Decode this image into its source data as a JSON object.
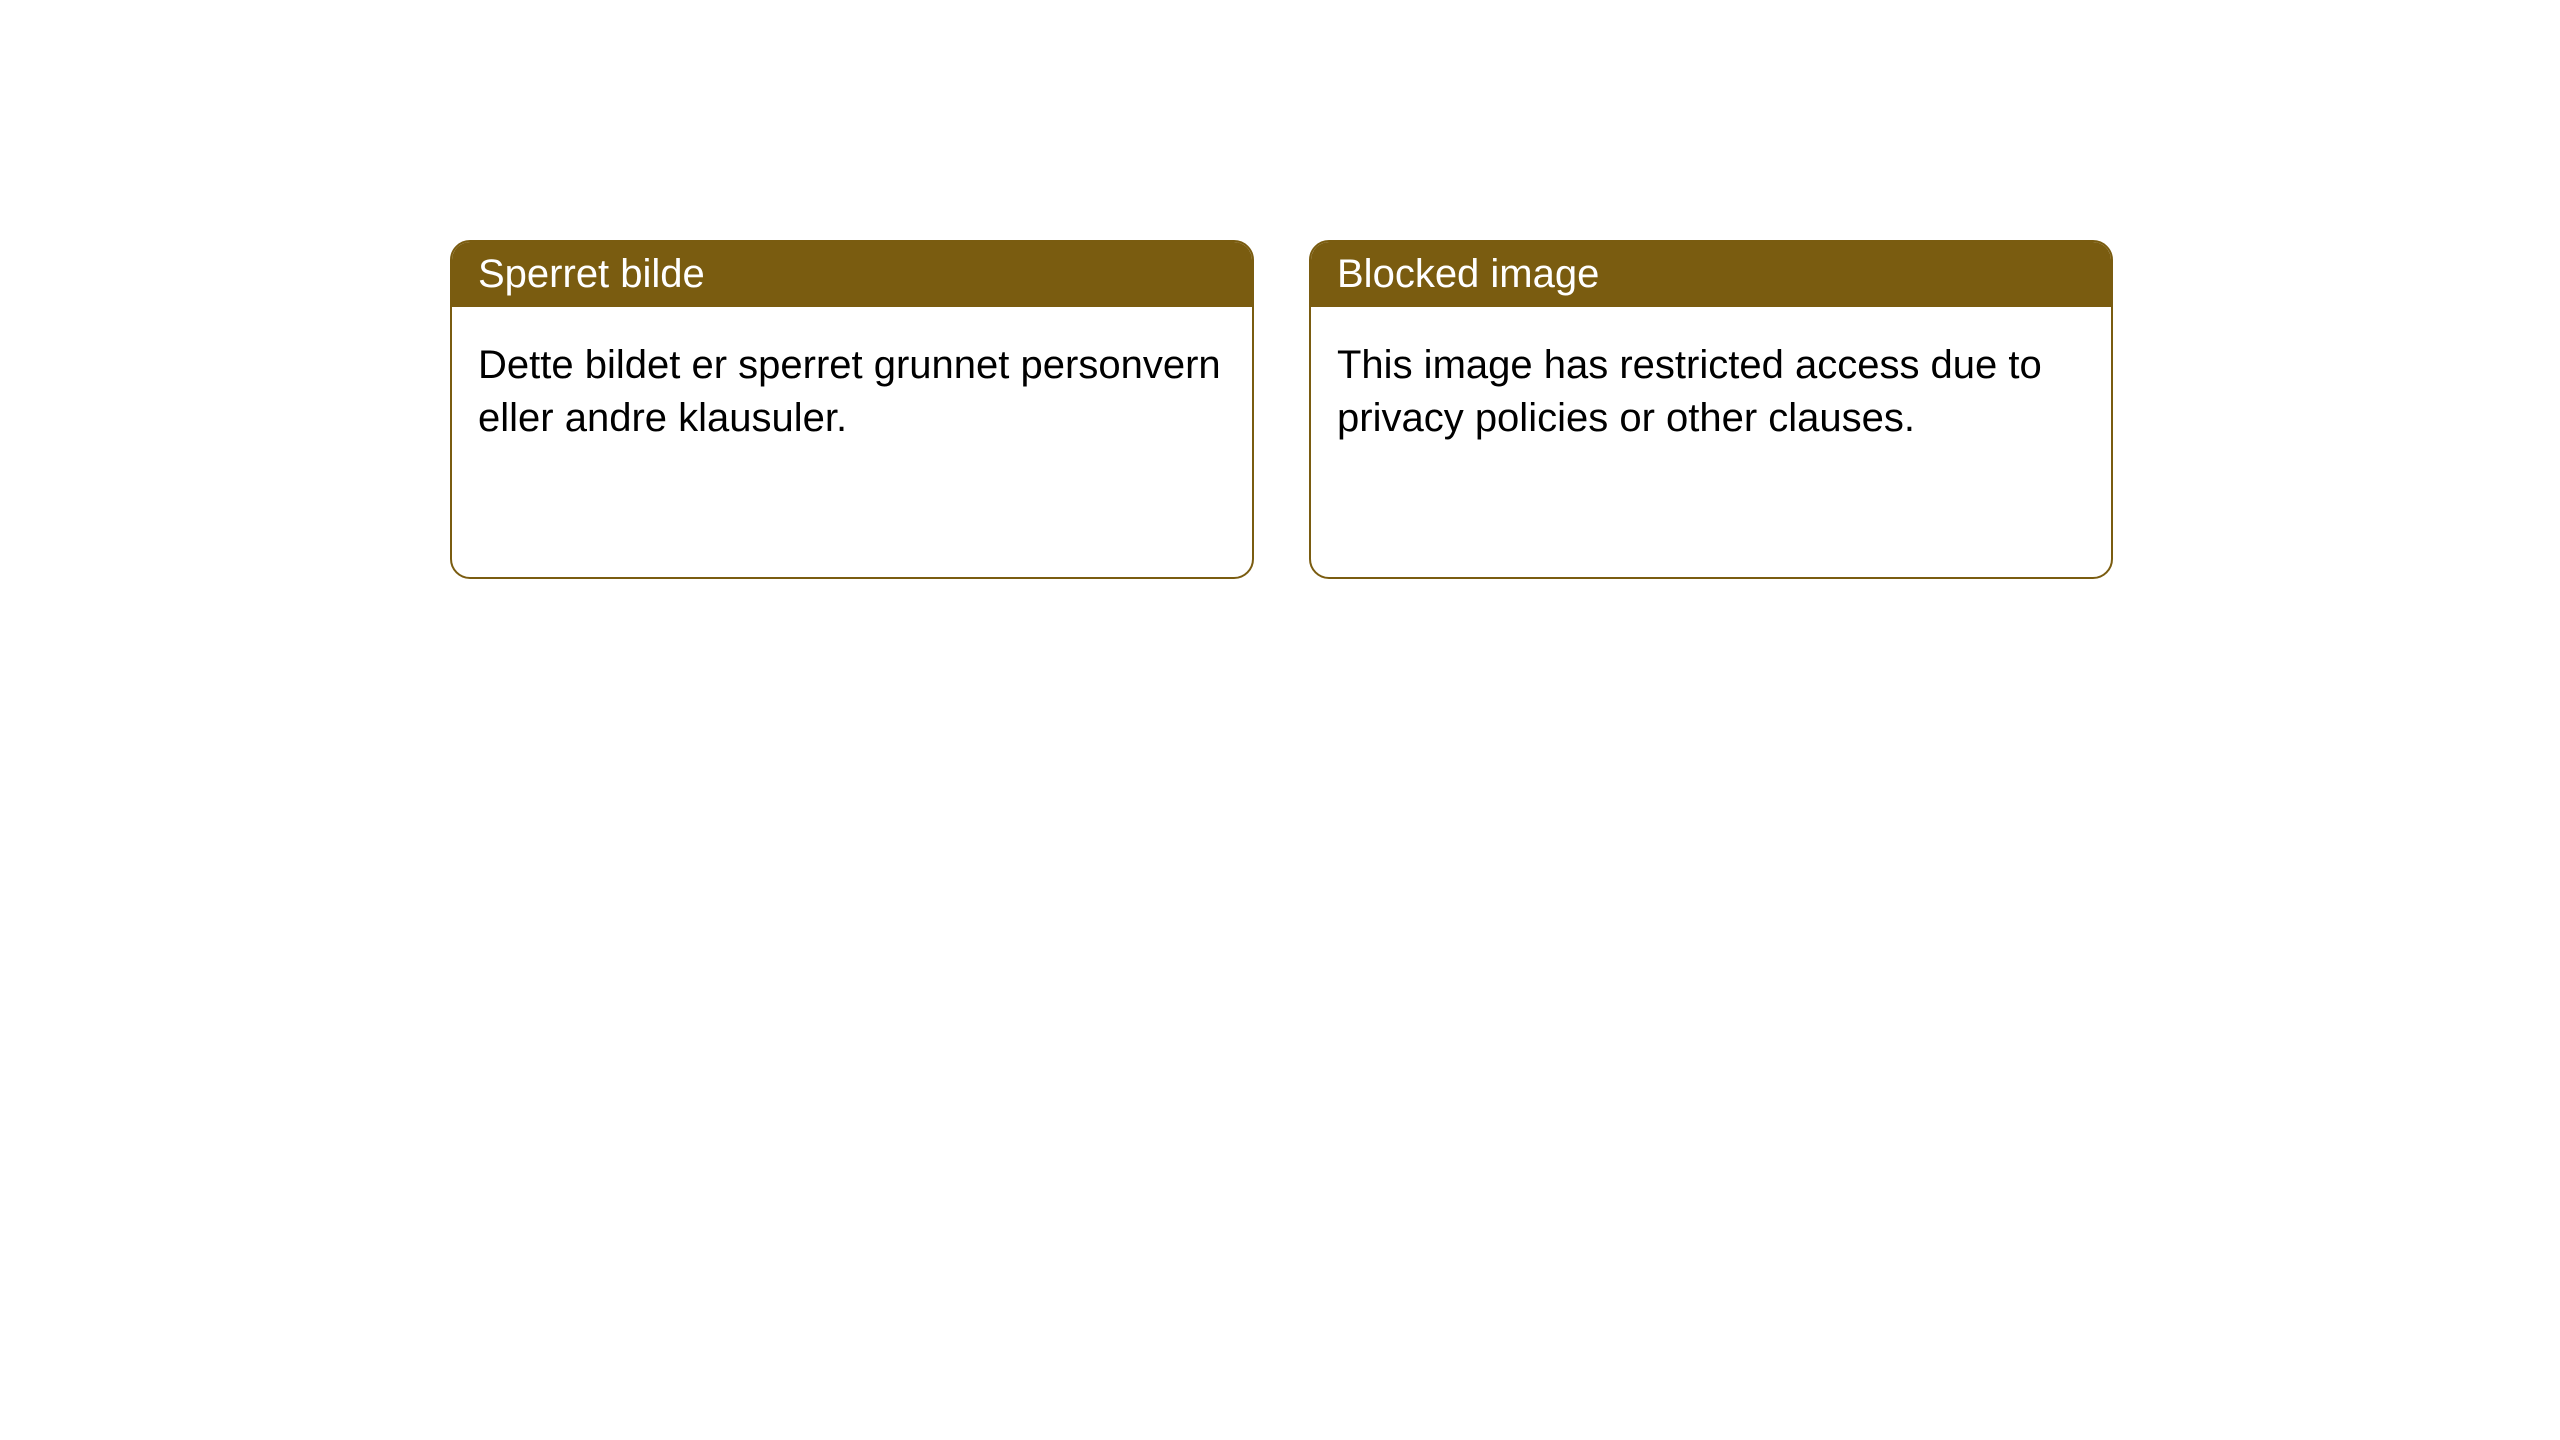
{
  "cards": [
    {
      "title": "Sperret bilde",
      "body": "Dette bildet er sperret grunnet personvern eller andre klausuler."
    },
    {
      "title": "Blocked image",
      "body": "This image has restricted access due to privacy policies or other clauses."
    }
  ],
  "style": {
    "header_bg": "#7a5c10",
    "header_text": "#ffffff",
    "body_bg": "#ffffff",
    "body_text": "#000000",
    "border_color": "#7a5c10",
    "border_radius": 20,
    "title_fontsize": 40,
    "body_fontsize": 40
  }
}
